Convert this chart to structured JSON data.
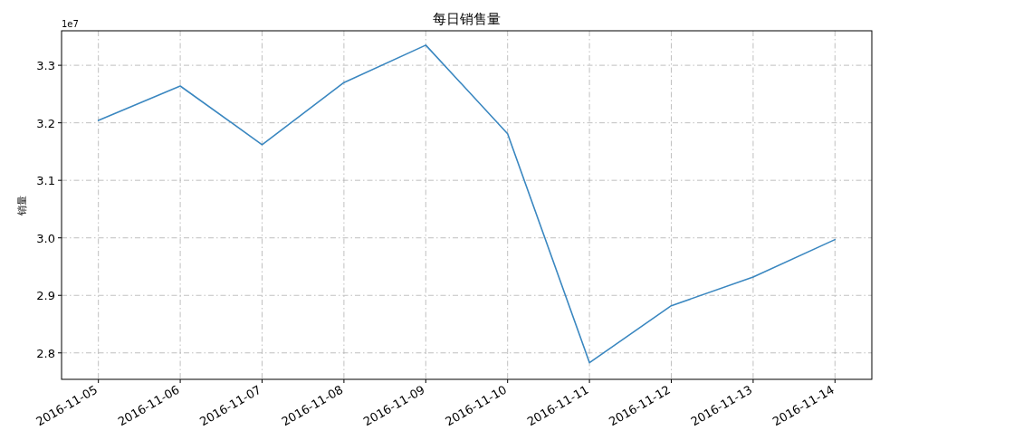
{
  "chart_data": {
    "type": "line",
    "title": "每日销售量",
    "ylabel": "销量",
    "x": [
      "2016-11-05",
      "2016-11-06",
      "2016-11-07",
      "2016-11-08",
      "2016-11-09",
      "2016-11-10",
      "2016-11-11",
      "2016-11-12",
      "2016-11-13",
      "2016-11-14"
    ],
    "series": [
      {
        "color": "#3a87c0",
        "values": [
          3.204,
          3.264,
          3.162,
          3.27,
          3.335,
          3.181,
          2.783,
          2.882,
          2.932,
          2.997
        ]
      }
    ],
    "xlim": [
      "2016-11-04T13:12",
      "2016-11-14T10:48"
    ],
    "xticks": [
      "2016-11-05",
      "2016-11-06",
      "2016-11-07",
      "2016-11-08",
      "2016-11-09",
      "2016-11-10",
      "2016-11-11",
      "2016-11-12",
      "2016-11-13",
      "2016-11-14"
    ],
    "ylim": [
      2.754,
      3.36
    ],
    "yticks": [
      2.8,
      2.9,
      {
        "value": 3,
        "label": "3.0"
      },
      3.1,
      3.2,
      3.3
    ],
    "annotations": [
      "1e7"
    ],
    "grid": true,
    "legend": false,
    "marker": "none",
    "line_style": "solid"
  }
}
